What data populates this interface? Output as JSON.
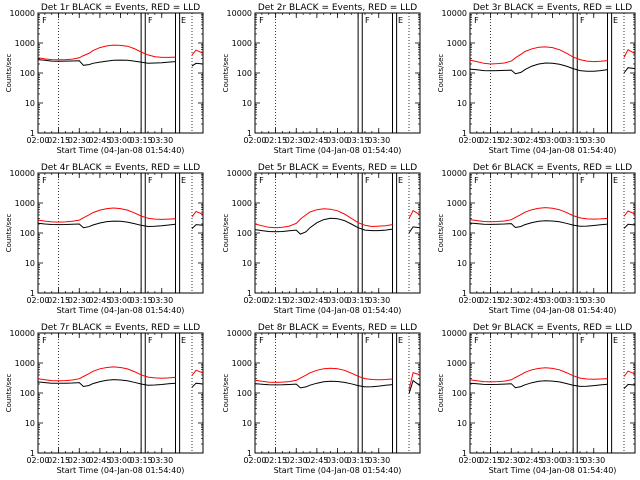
{
  "figure": {
    "start_time_label": "Start Time (04-Jan-08 01:54:40)",
    "ylabel": "Counts/sec",
    "x_ticks": [
      "02:00",
      "02:15",
      "02:30",
      "02:45",
      "03:00",
      "03:15",
      "03:30"
    ],
    "y_ticks": [
      "1",
      "10",
      "100",
      "1000",
      "10000"
    ],
    "colors": {
      "events": "#000000",
      "lld": "#ff0000",
      "axes": "#000000"
    },
    "markers": [
      "F",
      "E"
    ]
  },
  "chart_data": [
    {
      "type": "line",
      "title": "Det 1r BLACK = Events, RED = LLD",
      "x": [
        0,
        5,
        10,
        15,
        20,
        25,
        30,
        33,
        37,
        40,
        45,
        50,
        55,
        60,
        65,
        70,
        75,
        80,
        85,
        90,
        95,
        100,
        102,
        105,
        110,
        112,
        115,
        120
      ],
      "series": [
        {
          "name": "Events",
          "color": "#000000",
          "values": [
            280,
            265,
            250,
            248,
            250,
            252,
            255,
            180,
            190,
            210,
            230,
            250,
            265,
            270,
            265,
            250,
            230,
            210,
            215,
            220,
            230,
            240,
            null,
            null,
            null,
            170,
            210,
            200
          ]
        },
        {
          "name": "LLD",
          "color": "#ff0000",
          "values": [
            320,
            295,
            280,
            275,
            280,
            290,
            320,
            380,
            450,
            560,
            700,
            800,
            850,
            830,
            780,
            650,
            500,
            400,
            350,
            330,
            330,
            340,
            null,
            null,
            null,
            400,
            580,
            450
          ]
        }
      ],
      "xlim": [
        0,
        120
      ],
      "ylim": [
        1,
        10000
      ],
      "yscale": "log"
    },
    {
      "type": "line",
      "title": "Det 2r BLACK = Events, RED = LLD",
      "x": [],
      "series": [],
      "xlim": [
        0,
        120
      ],
      "ylim": [
        1,
        10000
      ],
      "yscale": "log"
    },
    {
      "type": "line",
      "title": "Det 3r BLACK = Events, RED = LLD",
      "x": [
        0,
        5,
        10,
        15,
        20,
        25,
        30,
        33,
        37,
        40,
        45,
        50,
        55,
        60,
        65,
        70,
        75,
        80,
        85,
        90,
        95,
        100,
        102,
        105,
        110,
        112,
        115,
        120
      ],
      "series": [
        {
          "name": "Events",
          "color": "#000000",
          "values": [
            135,
            128,
            120,
            118,
            120,
            122,
            125,
            95,
            105,
            130,
            170,
            200,
            215,
            210,
            195,
            170,
            140,
            120,
            115,
            115,
            120,
            130,
            null,
            null,
            null,
            100,
            150,
            140
          ]
        },
        {
          "name": "LLD",
          "color": "#ff0000",
          "values": [
            270,
            240,
            210,
            200,
            205,
            215,
            250,
            320,
            420,
            520,
            640,
            720,
            740,
            700,
            600,
            460,
            340,
            280,
            250,
            240,
            245,
            260,
            null,
            null,
            null,
            330,
            600,
            440
          ]
        }
      ],
      "xlim": [
        0,
        120
      ],
      "ylim": [
        1,
        10000
      ],
      "yscale": "log"
    },
    {
      "type": "line",
      "title": "Det 4r BLACK = Events, RED = LLD",
      "x": [
        0,
        5,
        10,
        15,
        20,
        25,
        30,
        33,
        37,
        40,
        45,
        50,
        55,
        60,
        65,
        70,
        75,
        80,
        85,
        90,
        95,
        100,
        102,
        105,
        110,
        112,
        115,
        120
      ],
      "series": [
        {
          "name": "Events",
          "color": "#000000",
          "values": [
            210,
            200,
            192,
            190,
            192,
            196,
            200,
            150,
            162,
            185,
            215,
            240,
            250,
            245,
            230,
            205,
            180,
            165,
            168,
            175,
            185,
            195,
            null,
            null,
            null,
            140,
            190,
            180
          ]
        },
        {
          "name": "LLD",
          "color": "#ff0000",
          "values": [
            270,
            250,
            235,
            230,
            235,
            245,
            270,
            320,
            400,
            480,
            580,
            650,
            680,
            650,
            580,
            470,
            370,
            310,
            290,
            285,
            290,
            300,
            null,
            null,
            null,
            350,
            520,
            420
          ]
        }
      ],
      "xlim": [
        0,
        120
      ],
      "ylim": [
        1,
        10000
      ],
      "yscale": "log"
    },
    {
      "type": "line",
      "title": "Det 5r BLACK = Events, RED = LLD",
      "x": [
        0,
        5,
        10,
        15,
        20,
        25,
        30,
        33,
        37,
        40,
        45,
        50,
        55,
        60,
        65,
        70,
        75,
        80,
        85,
        90,
        95,
        100,
        102,
        105,
        110,
        112,
        115,
        120
      ],
      "series": [
        {
          "name": "Events",
          "color": "#000000",
          "values": [
            130,
            120,
            112,
            110,
            112,
            118,
            125,
            92,
            110,
            150,
            220,
            280,
            310,
            300,
            260,
            200,
            150,
            125,
            120,
            120,
            125,
            135,
            null,
            null,
            null,
            100,
            160,
            150
          ]
        },
        {
          "name": "LLD",
          "color": "#ff0000",
          "values": [
            200,
            175,
            155,
            150,
            155,
            170,
            210,
            290,
            400,
            500,
            600,
            640,
            620,
            550,
            430,
            310,
            220,
            180,
            165,
            170,
            175,
            190,
            null,
            null,
            null,
            300,
            560,
            400
          ]
        }
      ],
      "xlim": [
        0,
        120
      ],
      "ylim": [
        1,
        10000
      ],
      "yscale": "log"
    },
    {
      "type": "line",
      "title": "Det 6r BLACK = Events, RED = LLD",
      "x": [
        0,
        5,
        10,
        15,
        20,
        25,
        30,
        33,
        37,
        40,
        45,
        50,
        55,
        60,
        65,
        70,
        75,
        80,
        85,
        90,
        95,
        100,
        102,
        105,
        110,
        112,
        115,
        120
      ],
      "series": [
        {
          "name": "Events",
          "color": "#000000",
          "values": [
            215,
            205,
            196,
            194,
            196,
            200,
            205,
            152,
            165,
            190,
            222,
            248,
            258,
            252,
            236,
            210,
            184,
            168,
            170,
            178,
            188,
            198,
            null,
            null,
            null,
            142,
            195,
            185
          ]
        },
        {
          "name": "LLD",
          "color": "#ff0000",
          "values": [
            280,
            260,
            242,
            238,
            242,
            252,
            278,
            330,
            410,
            495,
            600,
            670,
            700,
            670,
            600,
            485,
            380,
            318,
            296,
            290,
            296,
            306,
            null,
            null,
            null,
            360,
            540,
            430
          ]
        }
      ],
      "xlim": [
        0,
        120
      ],
      "ylim": [
        1,
        10000
      ],
      "yscale": "log"
    },
    {
      "type": "line",
      "title": "Det 7r BLACK = Events, RED = LLD",
      "x": [
        0,
        5,
        10,
        15,
        20,
        25,
        30,
        33,
        37,
        40,
        45,
        50,
        55,
        60,
        65,
        70,
        75,
        80,
        85,
        90,
        95,
        100,
        102,
        105,
        110,
        112,
        115,
        120
      ],
      "series": [
        {
          "name": "Events",
          "color": "#000000",
          "values": [
            235,
            222,
            212,
            210,
            212,
            216,
            222,
            165,
            178,
            205,
            240,
            268,
            280,
            272,
            255,
            228,
            200,
            182,
            185,
            192,
            202,
            212,
            null,
            null,
            null,
            155,
            212,
            200
          ]
        },
        {
          "name": "LLD",
          "color": "#ff0000",
          "values": [
            300,
            278,
            260,
            255,
            260,
            272,
            300,
            355,
            440,
            530,
            640,
            710,
            740,
            710,
            635,
            515,
            405,
            340,
            318,
            312,
            318,
            330,
            null,
            null,
            null,
            385,
            575,
            460
          ]
        }
      ],
      "xlim": [
        0,
        120
      ],
      "ylim": [
        1,
        10000
      ],
      "yscale": "log"
    },
    {
      "type": "line",
      "title": "Det 8r BLACK = Events, RED = LLD",
      "x": [
        0,
        5,
        10,
        15,
        20,
        25,
        30,
        33,
        37,
        40,
        45,
        50,
        55,
        60,
        65,
        70,
        75,
        80,
        85,
        90,
        95,
        100,
        102,
        105,
        110,
        112,
        115,
        120
      ],
      "series": [
        {
          "name": "Events",
          "color": "#000000",
          "values": [
            205,
            196,
            188,
            186,
            188,
            192,
            198,
            148,
            160,
            182,
            212,
            238,
            248,
            242,
            226,
            202,
            176,
            160,
            162,
            170,
            180,
            190,
            null,
            null,
            null,
            95,
            260,
            175
          ]
        },
        {
          "name": "LLD",
          "color": "#ff0000",
          "values": [
            265,
            246,
            230,
            226,
            230,
            240,
            265,
            315,
            392,
            472,
            570,
            640,
            668,
            640,
            570,
            460,
            360,
            302,
            282,
            276,
            282,
            292,
            null,
            null,
            null,
            130,
            480,
            400
          ]
        }
      ],
      "xlim": [
        0,
        120
      ],
      "ylim": [
        1,
        10000
      ],
      "yscale": "log"
    },
    {
      "type": "line",
      "title": "Det 9r BLACK = Events, RED = LLD",
      "x": [
        0,
        5,
        10,
        15,
        20,
        25,
        30,
        33,
        37,
        40,
        45,
        50,
        55,
        60,
        65,
        70,
        75,
        80,
        85,
        90,
        95,
        100,
        102,
        105,
        110,
        112,
        115,
        120
      ],
      "series": [
        {
          "name": "Events",
          "color": "#000000",
          "values": [
            212,
            202,
            194,
            192,
            194,
            198,
            204,
            150,
            163,
            188,
            220,
            245,
            256,
            250,
            234,
            208,
            182,
            166,
            168,
            176,
            186,
            196,
            null,
            null,
            null,
            140,
            193,
            183
          ]
        },
        {
          "name": "LLD",
          "color": "#ff0000",
          "values": [
            276,
            256,
            240,
            235,
            240,
            250,
            276,
            328,
            406,
            490,
            592,
            662,
            692,
            662,
            592,
            480,
            376,
            314,
            293,
            287,
            293,
            303,
            null,
            null,
            null,
            356,
            535,
            425
          ]
        }
      ],
      "xlim": [
        0,
        120
      ],
      "ylim": [
        1,
        10000
      ],
      "yscale": "log"
    }
  ]
}
